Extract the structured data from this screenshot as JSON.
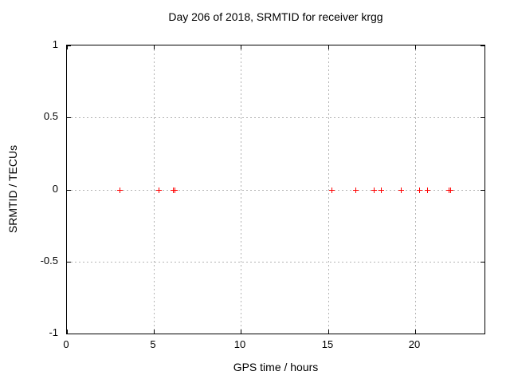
{
  "chart_data": {
    "type": "scatter",
    "title": "Day 206 of 2018, SRMTID for receiver krgg",
    "xlabel": "GPS time / hours",
    "ylabel": "SRMTID / TECUs",
    "xlim": [
      0,
      24
    ],
    "ylim": [
      -1,
      1
    ],
    "xticks": [
      0,
      5,
      10,
      15,
      20
    ],
    "yticks": [
      1,
      0.5,
      0,
      -0.5,
      -1
    ],
    "grid": true,
    "legend": "none",
    "marker": "plus",
    "marker_color": "#ff0000",
    "grid_color": "#b3b3b3",
    "border_color": "#000000",
    "series": [
      {
        "name": "SRMTID",
        "x": [
          3.0,
          5.25,
          6.1,
          6.2,
          15.2,
          16.6,
          17.65,
          18.05,
          19.2,
          20.25,
          20.7,
          21.95,
          22.05
        ],
        "y": [
          0,
          0,
          0,
          0,
          0,
          0,
          0,
          0,
          0,
          0,
          0,
          0,
          0
        ]
      }
    ]
  }
}
